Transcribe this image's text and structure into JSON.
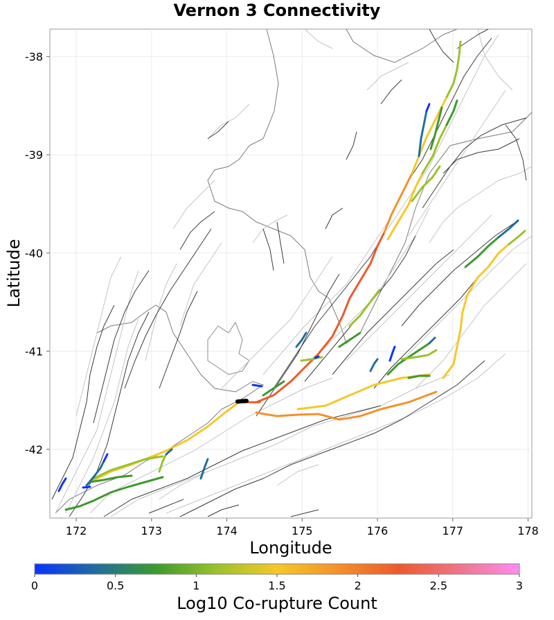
{
  "title": "Vernon 3 Connectivity",
  "axes": {
    "xlabel": "Longitude",
    "ylabel": "Latitude",
    "xticks": [
      "172",
      "173",
      "174",
      "175",
      "176",
      "177",
      "178"
    ],
    "yticks": [
      "-38",
      "-39",
      "-40",
      "-41",
      "-42"
    ],
    "xlim": [
      171.65,
      178.05
    ],
    "ylim": [
      -42.7,
      -37.72
    ]
  },
  "colorbar": {
    "label": "Log10 Co-rupture Count",
    "ticks": [
      "0",
      "0.5",
      "1",
      "1.5",
      "2",
      "2.5",
      "3"
    ],
    "range": [
      0,
      3
    ],
    "colors": [
      "#0a32ff",
      "#1e6ea0",
      "#3c9a2c",
      "#9ac22a",
      "#f5c828",
      "#f59028",
      "#ec5a2a",
      "#f07488",
      "#ff8cf0"
    ]
  },
  "colors": {
    "fault_dark": "#3a3a3a",
    "fault_light": "#bbbbbb",
    "coast": "#7a7a7a",
    "source_fault": "#000000"
  }
}
